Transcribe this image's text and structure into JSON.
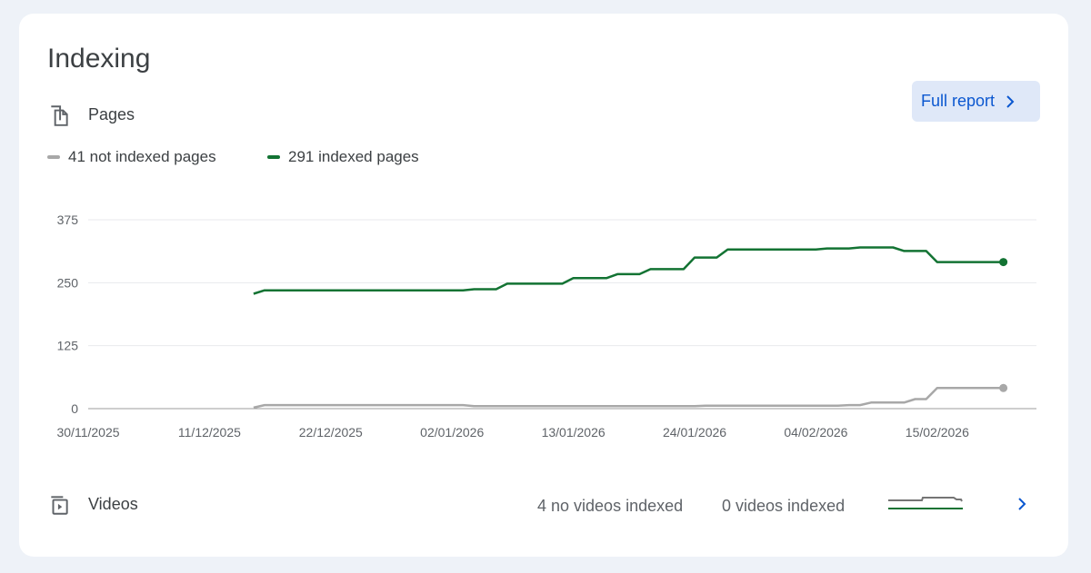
{
  "card": {
    "title": "Indexing"
  },
  "pages_row": {
    "icon": "pages-icon",
    "label": "Pages",
    "button_label": "Full report"
  },
  "legend": [
    {
      "label": "41 not indexed pages",
      "color": "#a8a8a8"
    },
    {
      "label": "291 indexed pages",
      "color": "#137333"
    }
  ],
  "chart_data": {
    "type": "line",
    "title": "",
    "xlabel": "",
    "ylabel": "",
    "x_tick_labels": [
      "30/11/2025",
      "11/12/2025",
      "22/12/2025",
      "02/01/2026",
      "13/01/2026",
      "24/01/2026",
      "04/02/2026",
      "15/02/2026"
    ],
    "y_ticks": [
      0,
      125,
      250,
      375
    ],
    "ylim": [
      0,
      375
    ],
    "xlim": [
      "2025-11-30",
      "2026-02-24"
    ],
    "grid": true,
    "legend_position": "top-left",
    "series": [
      {
        "name": "291 indexed pages",
        "color": "#137333",
        "points": [
          [
            "2025-12-15",
            228
          ],
          [
            "2025-12-16",
            235
          ],
          [
            "2026-01-03",
            235
          ],
          [
            "2026-01-04",
            237
          ],
          [
            "2026-01-06",
            237
          ],
          [
            "2026-01-07",
            248
          ],
          [
            "2026-01-12",
            248
          ],
          [
            "2026-01-13",
            259
          ],
          [
            "2026-01-16",
            259
          ],
          [
            "2026-01-17",
            267
          ],
          [
            "2026-01-19",
            267
          ],
          [
            "2026-01-20",
            277
          ],
          [
            "2026-01-23",
            277
          ],
          [
            "2026-01-24",
            300
          ],
          [
            "2026-01-26",
            300
          ],
          [
            "2026-01-27",
            316
          ],
          [
            "2026-02-04",
            316
          ],
          [
            "2026-02-05",
            318
          ],
          [
            "2026-02-07",
            318
          ],
          [
            "2026-02-08",
            320
          ],
          [
            "2026-02-11",
            320
          ],
          [
            "2026-02-12",
            313
          ],
          [
            "2026-02-14",
            313
          ],
          [
            "2026-02-15",
            291
          ],
          [
            "2026-02-21",
            291
          ]
        ]
      },
      {
        "name": "41 not indexed pages",
        "color": "#a8a8a8",
        "points": [
          [
            "2025-12-15",
            2
          ],
          [
            "2025-12-16",
            7
          ],
          [
            "2026-01-03",
            7
          ],
          [
            "2026-01-04",
            5
          ],
          [
            "2026-01-24",
            5
          ],
          [
            "2026-01-25",
            6
          ],
          [
            "2026-02-06",
            6
          ],
          [
            "2026-02-07",
            7
          ],
          [
            "2026-02-08",
            7
          ],
          [
            "2026-02-09",
            12
          ],
          [
            "2026-02-12",
            12
          ],
          [
            "2026-02-13",
            19
          ],
          [
            "2026-02-14",
            19
          ],
          [
            "2026-02-15",
            41
          ],
          [
            "2026-02-21",
            41
          ]
        ]
      }
    ]
  },
  "videos_row": {
    "icon": "video-library-icon",
    "label": "Videos",
    "no_videos_indexed": "4 no videos indexed",
    "videos_indexed": "0 videos indexed"
  }
}
